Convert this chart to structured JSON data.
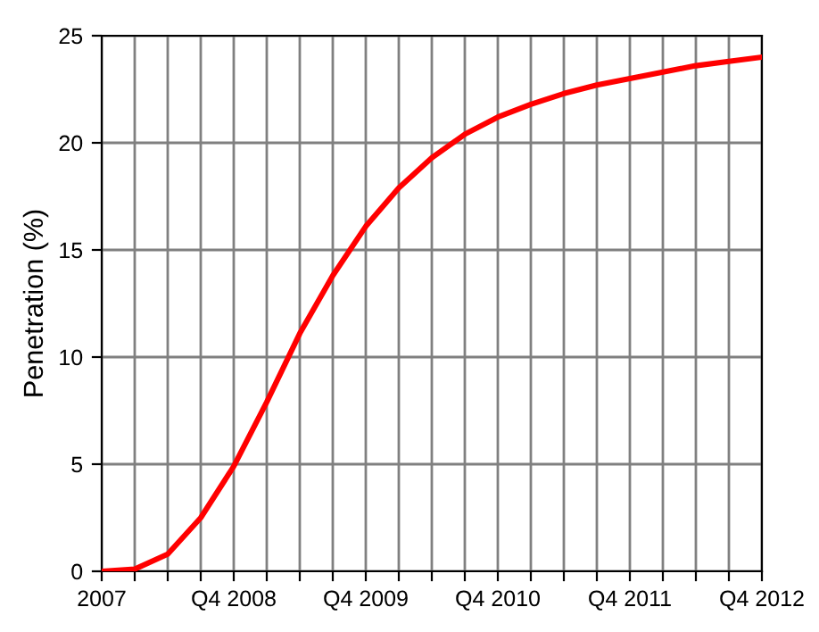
{
  "chart_data": {
    "type": "line",
    "ylabel": "Penetration (%)",
    "categories": [
      "2007",
      null,
      null,
      null,
      "Q4 2008",
      null,
      null,
      null,
      "Q4 2009",
      null,
      null,
      null,
      "Q4 2010",
      null,
      null,
      null,
      "Q4 2011",
      null,
      null,
      null,
      "Q4 2012"
    ],
    "series": [
      {
        "color": "#ff0000",
        "values": [
          0,
          0.1,
          0.8,
          2.5,
          4.9,
          7.9,
          11.1,
          13.8,
          16.1,
          17.9,
          19.3,
          20.4,
          21.2,
          21.8,
          22.3,
          22.7,
          23.0,
          23.3,
          23.6,
          23.8,
          24.0
        ]
      }
    ],
    "ylim": [
      0,
      25
    ],
    "yticks": [
      0,
      5,
      10,
      15,
      20,
      25
    ],
    "grid": true,
    "line_style": "solid"
  }
}
